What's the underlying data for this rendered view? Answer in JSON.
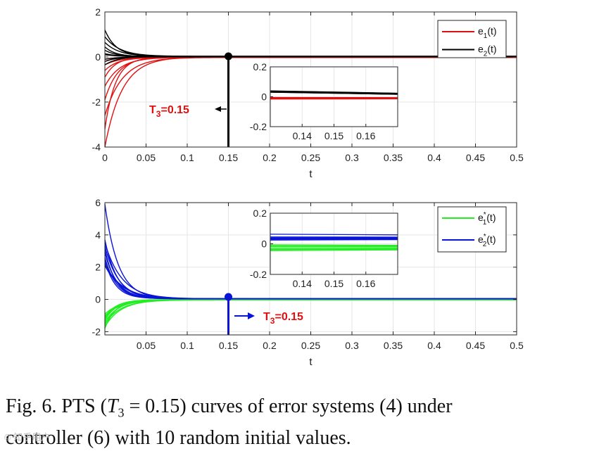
{
  "chart_data": [
    {
      "type": "line",
      "xlabel": "t",
      "xlim": [
        0,
        0.5
      ],
      "ylim": [
        -4,
        2
      ],
      "xticks": [
        0,
        0.05,
        0.1,
        0.15,
        0.2,
        0.25,
        0.3,
        0.35,
        0.4,
        0.45,
        0.5
      ],
      "xtick_labels": [
        "0",
        "0.05",
        "0.1",
        "0.15",
        "0.2",
        "0.25",
        "0.3",
        "0.35",
        "0.4",
        "0.45",
        "0.5"
      ],
      "yticks": [
        2,
        0,
        -2,
        -4
      ],
      "ytick_labels": [
        "2",
        "0",
        "-2",
        "-4"
      ],
      "grid": true,
      "legend": {
        "position": "top-right",
        "entries": [
          {
            "main": "e",
            "sub": "1",
            "sup": "",
            "tail": "(t)",
            "color": "#e01010"
          },
          {
            "main": "e",
            "sub": "2",
            "sup": "",
            "tail": "(t)",
            "color": "#000000"
          }
        ]
      },
      "series": [
        {
          "name": "e1(t)",
          "color": "#e01010",
          "initial_values": [
            -4.0,
            -3.2,
            -2.6,
            -1.9,
            -1.3,
            -0.9,
            -0.6,
            -0.35,
            -0.2,
            -0.1
          ],
          "settled_value": -0.01
        },
        {
          "name": "e2(t)",
          "color": "#000000",
          "initial_values": [
            1.2,
            0.9,
            0.65,
            0.45,
            0.3,
            -0.2,
            -0.35,
            0.1,
            0.15,
            -0.1
          ],
          "settled_value": 0.02
        }
      ],
      "settling_time": 0.15,
      "annotation": {
        "main": "T",
        "sub": "3",
        "tail": "=0.15"
      },
      "inset": {
        "xlim": [
          0.13,
          0.17
        ],
        "ylim": [
          -0.2,
          0.2
        ],
        "xticks": [
          0.14,
          0.15,
          0.16
        ],
        "xtick_labels": [
          "0.14",
          "0.15",
          "0.16"
        ],
        "yticks": [
          0.2,
          0,
          -0.2
        ],
        "ytick_labels": [
          "0.2",
          "0",
          "-0.2"
        ]
      }
    },
    {
      "type": "line",
      "xlabel": "t",
      "xlim": [
        0,
        0.5
      ],
      "ylim": [
        -2.2,
        6
      ],
      "xticks": [
        0.05,
        0.1,
        0.15,
        0.2,
        0.25,
        0.3,
        0.35,
        0.4,
        0.45,
        0.5
      ],
      "xtick_labels": [
        "0.05",
        "0.1",
        "0.15",
        "0.2",
        "0.25",
        "0.3",
        "0.35",
        "0.4",
        "0.45",
        "0.5"
      ],
      "yticks": [
        6,
        4,
        2,
        0,
        -2
      ],
      "ytick_labels": [
        "6",
        "4",
        "2",
        "0",
        "-2"
      ],
      "grid": true,
      "legend": {
        "position": "top-right",
        "entries": [
          {
            "main": "e",
            "sub": "1",
            "sup": "*",
            "tail": "(t)",
            "color": "#22ee22"
          },
          {
            "main": "e",
            "sub": "2",
            "sup": "*",
            "tail": "(t)",
            "color": "#0a14d8"
          }
        ]
      },
      "series": [
        {
          "name": "e1*(t)",
          "color": "#22ee22",
          "initial_values": [
            -1.8,
            -1.7,
            -1.6,
            -1.5,
            -1.4,
            -1.3,
            -1.2,
            -1.1,
            -1.0,
            -0.9
          ],
          "settled_value": -0.02
        },
        {
          "name": "e2*(t)",
          "color": "#0a14d8",
          "initial_values": [
            5.9,
            3.7,
            3.5,
            3.3,
            3.1,
            2.9,
            2.6,
            2.4,
            2.2,
            2.1
          ],
          "settled_value": 0.04
        }
      ],
      "settling_time": 0.15,
      "annotation": {
        "main": "T",
        "sub": "3",
        "tail": "=0.15"
      },
      "inset": {
        "xlim": [
          0.13,
          0.17
        ],
        "ylim": [
          -0.2,
          0.2
        ],
        "xticks": [
          0.14,
          0.15,
          0.16
        ],
        "xtick_labels": [
          "0.14",
          "0.15",
          "0.16"
        ],
        "yticks": [
          0.2,
          0,
          -0.2
        ],
        "ytick_labels": [
          "0.2",
          "0",
          "-0.2"
        ]
      }
    }
  ],
  "caption": {
    "line1_pre": "Fig. 6. PTS (",
    "t_main": "T",
    "t_sub": "3",
    "line1_eq": " = 0.15",
    "line1_post": ") curves of error systems (4) under",
    "line2": "controller (6) with 10 random initial values."
  },
  "watermark": "© 知乎用户"
}
